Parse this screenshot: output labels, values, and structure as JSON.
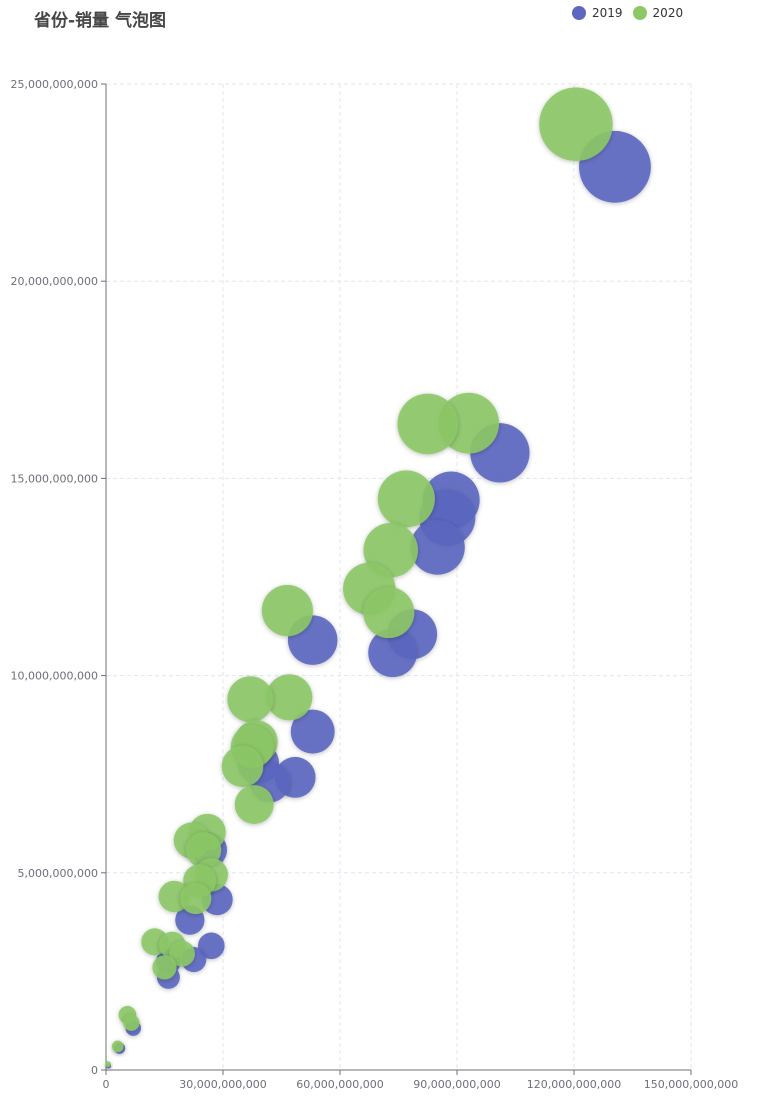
{
  "chart_data": {
    "type": "scatter",
    "title": "省份-销量 气泡图",
    "xlabel": "",
    "ylabel": "",
    "xlim": [
      0,
      150000000000
    ],
    "ylim": [
      0,
      25000000000
    ],
    "grid": true,
    "legend_position": "top-right",
    "x_ticks": [
      "0",
      "30,000,000,000",
      "60,000,000,000",
      "90,000,000,000",
      "120,000,000,000",
      "150,000,000,000"
    ],
    "y_ticks": [
      "0",
      "5,000,000,000",
      "10,000,000,000",
      "15,000,000,000",
      "20,000,000,000",
      "25,000,000,000"
    ],
    "series": [
      {
        "name": "2019",
        "color": "#5b67c0",
        "points": [
          [
            130500000000,
            22900000000
          ],
          [
            101000000000,
            15650000000
          ],
          [
            88500000000,
            14450000000
          ],
          [
            87500000000,
            14000000000
          ],
          [
            85000000000,
            13250000000
          ],
          [
            78500000000,
            11050000000
          ],
          [
            73500000000,
            10580000000
          ],
          [
            53000000000,
            10900000000
          ],
          [
            53000000000,
            8580000000
          ],
          [
            48500000000,
            7420000000
          ],
          [
            42000000000,
            7300000000
          ],
          [
            39000000000,
            7780000000
          ],
          [
            26500000000,
            5580000000
          ],
          [
            28500000000,
            4320000000
          ],
          [
            21500000000,
            3800000000
          ],
          [
            27000000000,
            3150000000
          ],
          [
            22500000000,
            2800000000
          ],
          [
            16000000000,
            2750000000
          ],
          [
            16000000000,
            2350000000
          ],
          [
            7000000000,
            1060000000
          ],
          [
            3500000000,
            550000000
          ],
          [
            700000000,
            100000000
          ]
        ]
      },
      {
        "name": "2020",
        "color": "#8cc866",
        "points": [
          [
            120500000000,
            23980000000
          ],
          [
            93000000000,
            16400000000
          ],
          [
            82500000000,
            16380000000
          ],
          [
            77000000000,
            14480000000
          ],
          [
            73000000000,
            13180000000
          ],
          [
            67500000000,
            12200000000
          ],
          [
            72500000000,
            11600000000
          ],
          [
            46500000000,
            11650000000
          ],
          [
            47000000000,
            9450000000
          ],
          [
            37000000000,
            9400000000
          ],
          [
            38500000000,
            8320000000
          ],
          [
            37500000000,
            8200000000
          ],
          [
            35000000000,
            7700000000
          ],
          [
            38000000000,
            6730000000
          ],
          [
            26000000000,
            6030000000
          ],
          [
            22000000000,
            5820000000
          ],
          [
            25000000000,
            5580000000
          ],
          [
            27000000000,
            4950000000
          ],
          [
            24000000000,
            4800000000
          ],
          [
            23000000000,
            4350000000
          ],
          [
            17500000000,
            4400000000
          ],
          [
            12500000000,
            3250000000
          ],
          [
            17000000000,
            3170000000
          ],
          [
            19500000000,
            2950000000
          ],
          [
            15000000000,
            2600000000
          ],
          [
            5500000000,
            1400000000
          ],
          [
            6500000000,
            1200000000
          ],
          [
            3000000000,
            600000000
          ],
          [
            500000000,
            150000000
          ]
        ]
      }
    ]
  }
}
